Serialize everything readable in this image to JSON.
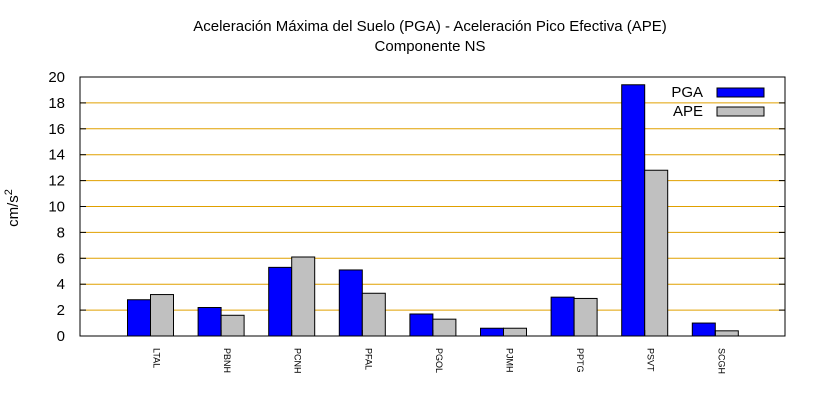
{
  "chart_data": {
    "type": "bar",
    "title": "Aceleración Máxima del Suelo (PGA) -  Aceleración Pico Efectiva (APE)",
    "subtitle": "Componente NS",
    "xlabel": "",
    "ylabel_base": "cm/s",
    "ylabel_exp": "2",
    "ylim": [
      0,
      20
    ],
    "yticks": [
      0,
      2,
      4,
      6,
      8,
      10,
      12,
      14,
      16,
      18,
      20
    ],
    "grid": true,
    "legend_position": "top-right",
    "categories": [
      "LTAL",
      "PBNH",
      "PCNH",
      "PFAL",
      "PGOL",
      "PJMH",
      "PPTG",
      "PSVT",
      "SCGH"
    ],
    "series": [
      {
        "name": "PGA",
        "color": "#0000ff",
        "values": [
          2.8,
          2.2,
          5.3,
          5.1,
          1.7,
          0.6,
          3.0,
          19.4,
          1.0
        ]
      },
      {
        "name": "APE",
        "color": "#c0c0c0",
        "values": [
          3.2,
          1.6,
          6.1,
          3.3,
          1.3,
          0.6,
          2.9,
          12.8,
          0.4
        ]
      }
    ],
    "grid_color": "#e0a000"
  }
}
